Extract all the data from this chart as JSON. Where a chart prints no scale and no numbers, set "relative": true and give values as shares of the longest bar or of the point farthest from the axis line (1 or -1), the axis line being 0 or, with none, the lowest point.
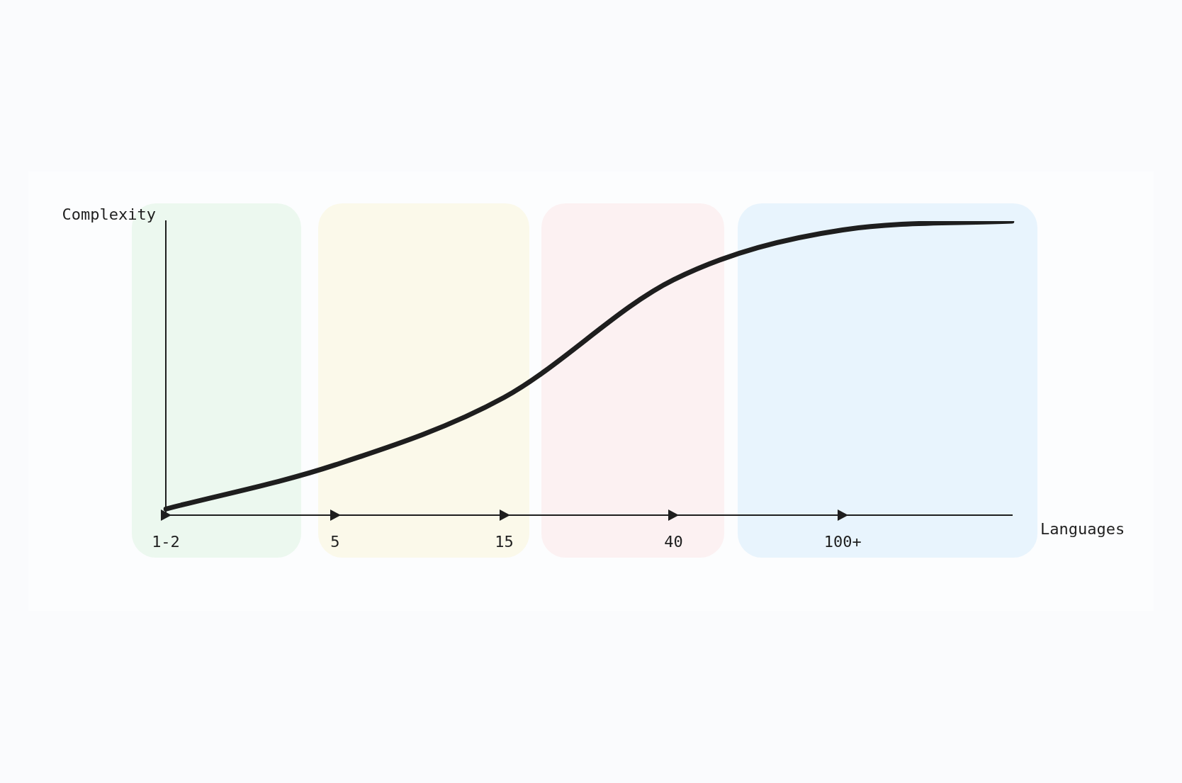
{
  "chart_data": {
    "type": "line",
    "xlabel": "Languages",
    "ylabel": "Complexity",
    "categories": [
      "1-2",
      "5",
      "15",
      "40",
      "100+",
      null
    ],
    "relative": true,
    "marker": "none",
    "series": [
      {
        "color": "#1e1e1e",
        "values": [
          0.02,
          0.17,
          0.4,
          0.8,
          0.97,
          1
        ]
      }
    ]
  }
}
